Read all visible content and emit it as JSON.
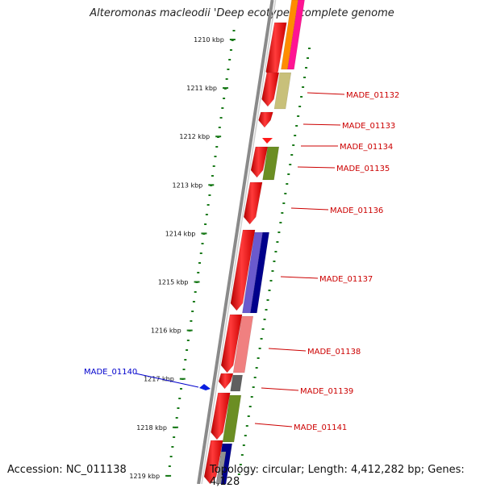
{
  "title": "Alteromonas macleodii 'Deep ecotype', complete genome",
  "footer": {
    "accession": "Accession: NC_011138",
    "summary": "Topology: circular; Length: 4,412,282 bp; Genes: 4,128"
  },
  "ruler": {
    "labels": [
      "1210 kbp",
      "1211 kbp",
      "1212 kbp",
      "1213 kbp",
      "1214 kbp",
      "1215 kbp",
      "1216 kbp",
      "1217 kbp",
      "1218 kbp",
      "1219 kbp"
    ],
    "tick_color": "#1a7a1a"
  },
  "gene_labels": [
    {
      "text": "MADE_01132",
      "color": "#cc0000"
    },
    {
      "text": "MADE_01133",
      "color": "#cc0000"
    },
    {
      "text": "MADE_01134",
      "color": "#cc0000"
    },
    {
      "text": "MADE_01135",
      "color": "#cc0000"
    },
    {
      "text": "MADE_01136",
      "color": "#cc0000"
    },
    {
      "text": "MADE_01137",
      "color": "#cc0000"
    },
    {
      "text": "MADE_01138",
      "color": "#cc0000"
    },
    {
      "text": "MADE_01139",
      "color": "#cc0000"
    },
    {
      "text": "MADE_01141",
      "color": "#cc0000"
    },
    {
      "text": "MADE_01140",
      "color": "#0000cc"
    }
  ],
  "colors": {
    "backbone": "#8a8a8a",
    "cds": "#ff1a1a",
    "reverse_gene": "#0a1fe0",
    "olive": "#6b8e23",
    "khaki": "#c8c07a",
    "slate_blue": "#6a5acd",
    "navy": "#00008b",
    "salmon": "#f08080",
    "dim_gray": "#606060",
    "orange": "#ff8c00",
    "deep_pink": "#ff1493"
  }
}
